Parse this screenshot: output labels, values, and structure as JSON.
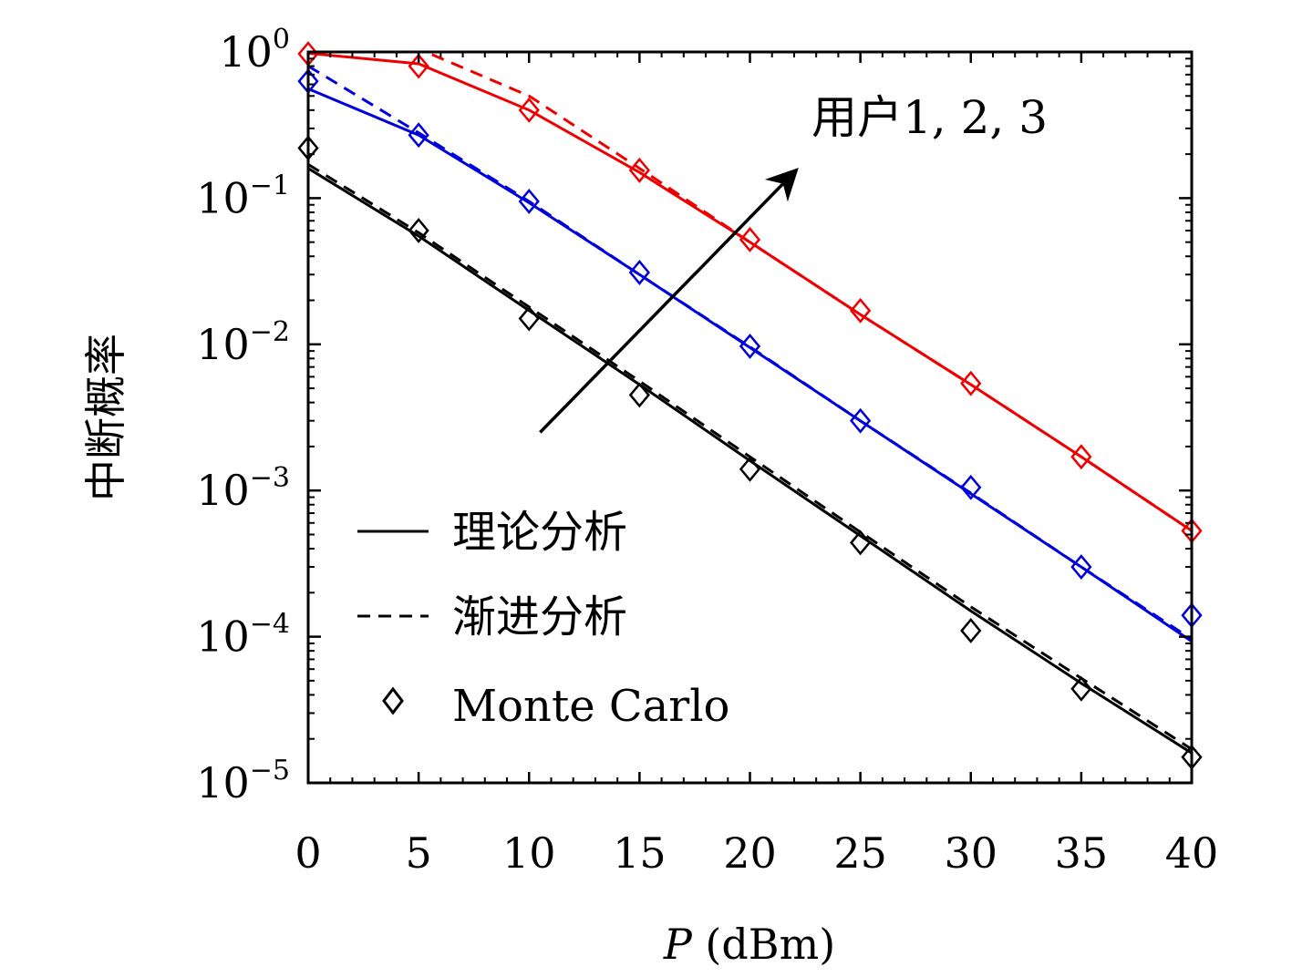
{
  "chart_data": {
    "type": "line",
    "xlabel_italic": "P",
    "xlabel_unit": " (dBm)",
    "ylabel": "中断概率",
    "xlim": [
      0,
      40
    ],
    "ylim": [
      1e-05,
      1
    ],
    "yscale": "log",
    "x_ticks": [
      "0",
      "5",
      "10",
      "15",
      "20",
      "25",
      "30",
      "35",
      "40"
    ],
    "y_ticks": [
      {
        "base": "10",
        "exp": "0",
        "value": 1
      },
      {
        "base": "10",
        "exp": "−1",
        "value": 0.1
      },
      {
        "base": "10",
        "exp": "−2",
        "value": 0.01
      },
      {
        "base": "10",
        "exp": "−3",
        "value": 0.001
      },
      {
        "base": "10",
        "exp": "−4",
        "value": 0.0001
      },
      {
        "base": "10",
        "exp": "−5",
        "value": 1e-05
      }
    ],
    "legend": {
      "position": "bottom-left",
      "entries": [
        {
          "label": "理论分析",
          "style": "solid"
        },
        {
          "label": "渐进分析",
          "style": "dashed"
        },
        {
          "label": "Monte Carlo",
          "style": "diamond"
        }
      ]
    },
    "annotation": {
      "text": "用户1, 2, 3",
      "arrow_from": [
        10.5,
        0.0025
      ],
      "arrow_to": [
        22,
        0.15
      ]
    },
    "x": [
      0,
      5,
      10,
      15,
      20,
      25,
      30,
      35,
      40
    ],
    "series": [
      {
        "color": "#000000",
        "theory": [
          0.16,
          0.055,
          0.017,
          0.0053,
          0.0016,
          0.00049,
          0.00015,
          4.8e-05,
          1.6e-05
        ],
        "asymptotic": [
          0.17,
          0.058,
          0.018,
          0.0056,
          0.0017,
          0.00052,
          0.00016,
          5.2e-05,
          1.7e-05
        ],
        "monte_carlo": [
          0.22,
          0.06,
          0.015,
          0.0045,
          0.0014,
          0.00044,
          0.00011,
          4.4e-05,
          1.5e-05
        ]
      },
      {
        "color": "#0000dd",
        "theory": [
          0.56,
          0.27,
          0.093,
          0.03,
          0.0095,
          0.003,
          0.00095,
          0.0003,
          9.3e-05
        ],
        "asymptotic": [
          0.8,
          0.28,
          0.095,
          0.03,
          0.0096,
          0.003,
          0.00096,
          0.0003,
          9.6e-05
        ],
        "monte_carlo": [
          0.63,
          0.27,
          0.095,
          0.031,
          0.0097,
          0.003,
          0.00105,
          0.0003,
          0.00014
        ]
      },
      {
        "color": "#ee0000",
        "theory": [
          0.98,
          0.83,
          0.4,
          0.15,
          0.05,
          0.016,
          0.0053,
          0.0017,
          0.00053
        ],
        "asymptotic": [
          1.3,
          1.05,
          0.5,
          0.16,
          0.05,
          0.016,
          0.0053,
          0.0017,
          0.00053
        ],
        "monte_carlo": [
          0.97,
          0.8,
          0.4,
          0.155,
          0.052,
          0.017,
          0.0054,
          0.0017,
          0.00053
        ]
      }
    ]
  }
}
